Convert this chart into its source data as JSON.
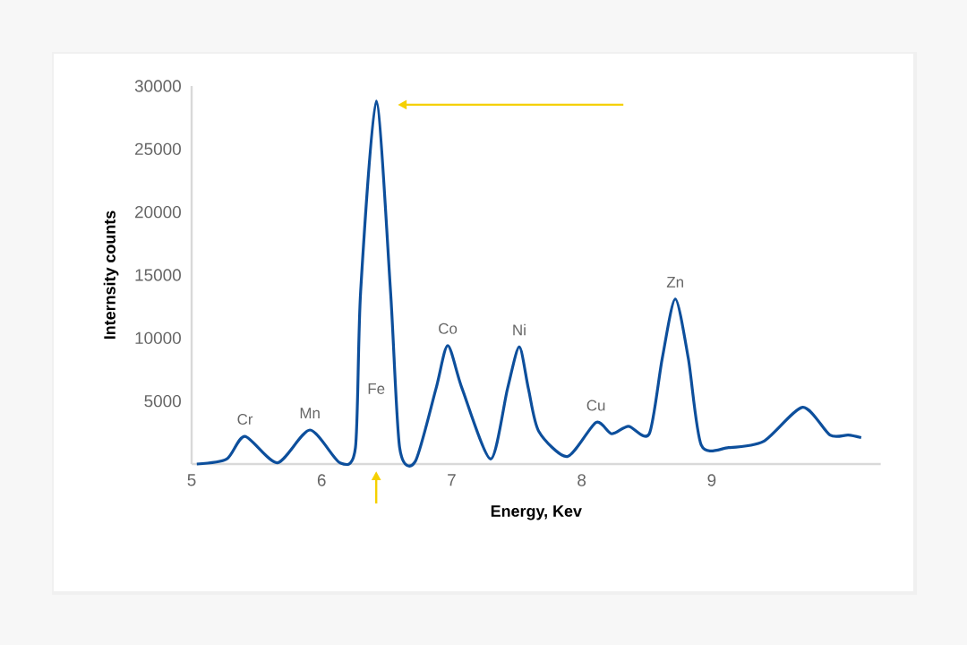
{
  "chart_data": {
    "type": "line",
    "xlabel": "Energy, Kev",
    "ylabel": "Internsity counts",
    "x": [
      5.04,
      5.27,
      5.41,
      5.66,
      5.91,
      6.14,
      6.26,
      6.3,
      6.42,
      6.53,
      6.6,
      6.72,
      6.88,
      6.97,
      7.08,
      7.3,
      7.43,
      7.52,
      7.59,
      7.67,
      7.89,
      8.11,
      8.23,
      8.36,
      8.52,
      8.62,
      8.72,
      8.82,
      8.92,
      9.13,
      9.4,
      9.7,
      9.91,
      10.05,
      10.15
    ],
    "series": [
      {
        "color": "#0d4f9c",
        "values": [
          0,
          400,
          2200,
          100,
          2700,
          100,
          1300,
          13700,
          28800,
          13700,
          1300,
          200,
          6000,
          9400,
          6000,
          400,
          6000,
          9300,
          6000,
          2600,
          600,
          3300,
          2400,
          3000,
          2400,
          8400,
          13100,
          8400,
          1500,
          1300,
          1800,
          4500,
          2300,
          2300,
          2100
        ]
      }
    ],
    "xlim": [
      5,
      10.3
    ],
    "ylim": [
      0,
      30000
    ],
    "xticks": [
      5,
      6,
      7,
      8,
      9
    ],
    "yticks": [
      5000,
      10000,
      15000,
      20000,
      25000,
      30000
    ],
    "grid": false,
    "marker": "none",
    "line_style": "solid",
    "annotations": [
      {
        "text": "Cr",
        "x": 5.41,
        "y": 2200
      },
      {
        "text": "Mn",
        "x": 5.91,
        "y": 2700
      },
      "Fe",
      {
        "text": "Co",
        "x": 6.97,
        "y": 9400
      },
      {
        "text": "Ni",
        "x": 7.52,
        "y": 9300
      },
      {
        "text": "Cu",
        "x": 8.11,
        "y": 3300
      },
      {
        "text": "Zn",
        "x": 8.72,
        "y": 13100
      }
    ]
  }
}
